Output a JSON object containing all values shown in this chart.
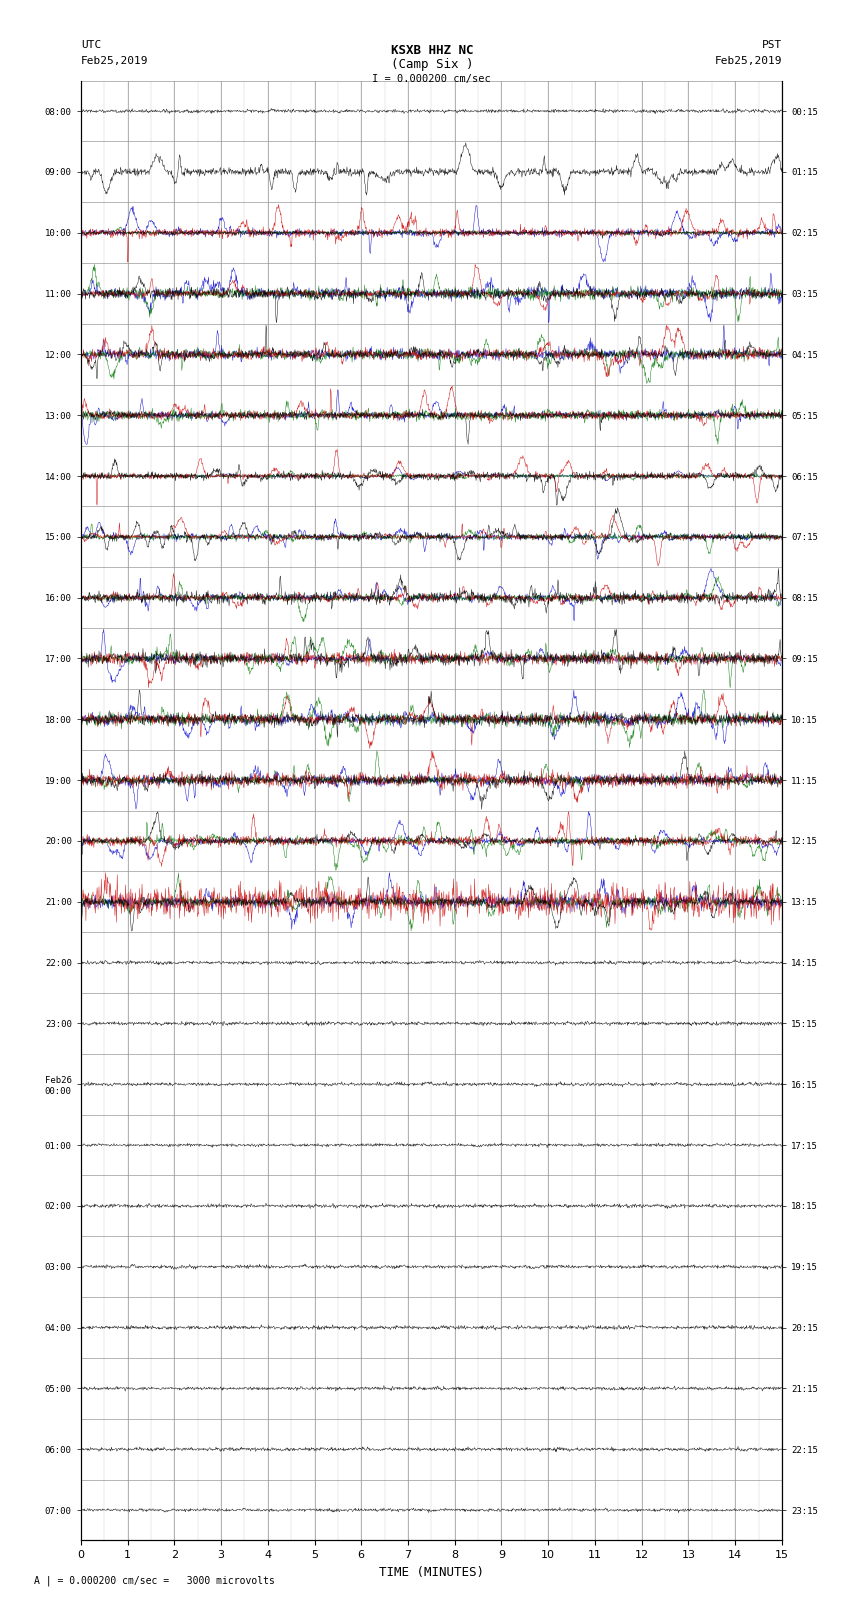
{
  "title_line1": "KSXB HHZ NC",
  "title_line2": "(Camp Six )",
  "scale_label": "I = 0.000200 cm/sec",
  "footer_label": "A | = 0.000200 cm/sec =   3000 microvolts",
  "xlabel": "TIME (MINUTES)",
  "left_times": [
    "08:00",
    "09:00",
    "10:00",
    "11:00",
    "12:00",
    "13:00",
    "14:00",
    "15:00",
    "16:00",
    "17:00",
    "18:00",
    "19:00",
    "20:00",
    "21:00",
    "22:00",
    "23:00",
    "Feb26\n00:00",
    "01:00",
    "02:00",
    "03:00",
    "04:00",
    "05:00",
    "06:00",
    "07:00"
  ],
  "right_times": [
    "00:15",
    "01:15",
    "02:15",
    "03:15",
    "04:15",
    "05:15",
    "06:15",
    "07:15",
    "08:15",
    "09:15",
    "10:15",
    "11:15",
    "12:15",
    "13:15",
    "14:15",
    "15:15",
    "16:15",
    "17:15",
    "18:15",
    "19:15",
    "20:15",
    "21:15",
    "22:15",
    "23:15"
  ],
  "n_rows": 24,
  "n_cols": 1500,
  "bg_color": "#ffffff",
  "grid_color": "#999999",
  "trace_colors": [
    "#0000cc",
    "#007700",
    "#cc0000",
    "#000000"
  ]
}
